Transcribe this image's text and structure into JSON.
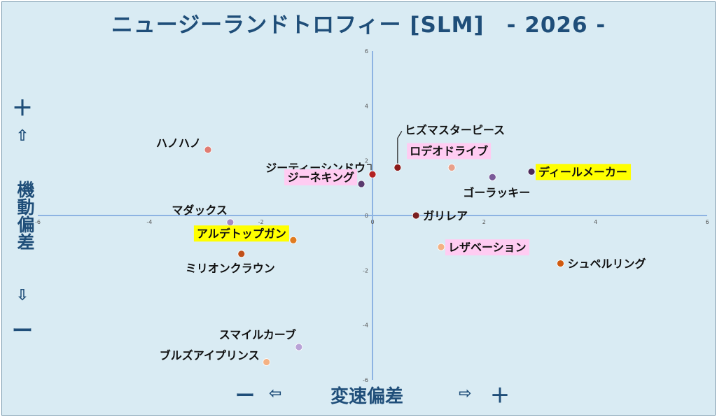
{
  "title": "ニュージーランドトロフィー [SLM]　- 2026 -",
  "y_axis": {
    "plus": "＋",
    "up_arrow": "⇧",
    "name": "機動偏差",
    "down_arrow": "⇩",
    "minus": "ー"
  },
  "x_axis": {
    "minus": "ー",
    "left_arrow": "⇦",
    "name": "変速偏差",
    "right_arrow": "⇨",
    "plus": "＋"
  },
  "colors": {
    "axis": "#8db3e2",
    "highlight_yellow": "#ffff00",
    "highlight_pink": "#ffccf2"
  },
  "chart_data": {
    "type": "scatter",
    "title": "ニュージーランドトロフィー [SLM]　- 2026 -",
    "xlabel": "変速偏差",
    "ylabel": "機動偏差",
    "xlim": [
      -6,
      6
    ],
    "ylim": [
      -6,
      6
    ],
    "x_ticks": [
      -6,
      -4,
      -2,
      0,
      2,
      4,
      6
    ],
    "y_ticks": [
      -6,
      -4,
      -2,
      0,
      2,
      4,
      6
    ],
    "grid": false,
    "points": [
      {
        "name": "ハノハノ",
        "x": -2.95,
        "y": 2.4,
        "color": "#e07c72",
        "highlight": "",
        "label_pos": "left"
      },
      {
        "name": "ジーティーシンドウ",
        "x": 0.0,
        "y": 1.5,
        "color": "#b22222",
        "highlight": "",
        "label_pos": "left"
      },
      {
        "name": "ヒズマスターピース",
        "x": 0.45,
        "y": 1.75,
        "color": "#8b1a1a",
        "highlight": "",
        "label_pos": "above-right"
      },
      {
        "name": "ロデオドライブ",
        "x": 1.42,
        "y": 1.75,
        "color": "#e8a08a",
        "highlight": "pink",
        "label_pos": "above"
      },
      {
        "name": "ディールメーカー",
        "x": 2.85,
        "y": 1.6,
        "color": "#4b2a5a",
        "highlight": "yellow",
        "label_pos": "right"
      },
      {
        "name": "ゴーラッキー",
        "x": 2.15,
        "y": 1.4,
        "color": "#7a5a99",
        "highlight": "",
        "label_pos": "below"
      },
      {
        "name": "ジーネキング",
        "x": -0.2,
        "y": 1.15,
        "color": "#5a3a6e",
        "highlight": "pink",
        "label_pos": "left"
      },
      {
        "name": "マダックス",
        "x": -2.55,
        "y": -0.25,
        "color": "#a58ac4",
        "highlight": "",
        "label_pos": "above-left"
      },
      {
        "name": "ガリレア",
        "x": 0.78,
        "y": 0.0,
        "color": "#7a1f1f",
        "highlight": "",
        "label_pos": "right"
      },
      {
        "name": "アルデトップガン",
        "x": -1.42,
        "y": -0.9,
        "color": "#e07b20",
        "highlight": "yellow",
        "label_pos": "left"
      },
      {
        "name": "ミリオンクラウン",
        "x": -2.35,
        "y": -1.4,
        "color": "#c0501a",
        "highlight": "",
        "label_pos": "below-left"
      },
      {
        "name": "レザベーション",
        "x": 1.23,
        "y": -1.15,
        "color": "#f4b183",
        "highlight": "pink",
        "label_pos": "right"
      },
      {
        "name": "シュペルリング",
        "x": 3.37,
        "y": -1.75,
        "color": "#d05a10",
        "highlight": "",
        "label_pos": "right"
      },
      {
        "name": "スマイルカーブ",
        "x": -1.32,
        "y": -4.8,
        "color": "#b8a2d6",
        "highlight": "",
        "label_pos": "above-left"
      },
      {
        "name": "ブルズアイプリンス",
        "x": -1.9,
        "y": -5.35,
        "color": "#f4b183",
        "highlight": "",
        "label_pos": "left"
      }
    ]
  }
}
